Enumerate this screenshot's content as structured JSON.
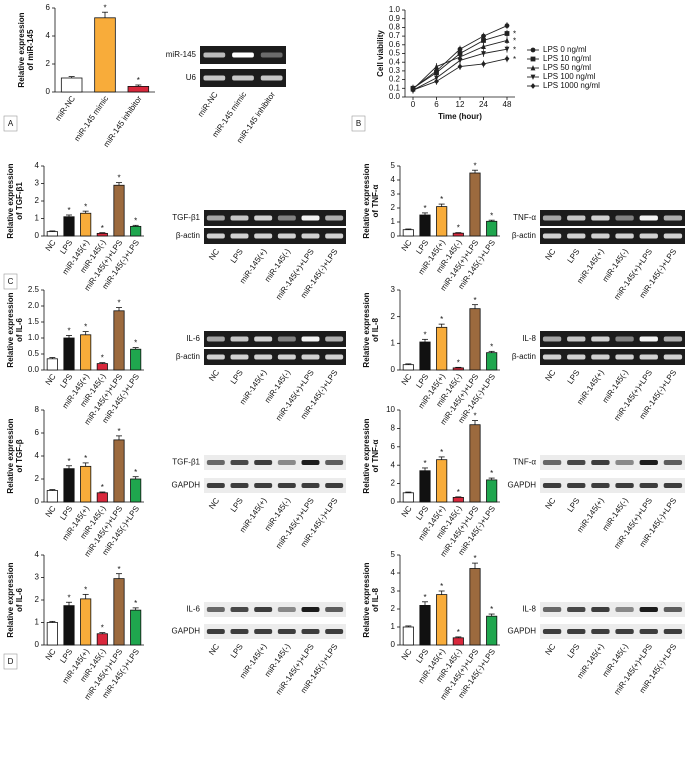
{
  "panel_labels": [
    "A",
    "B",
    "C",
    "D"
  ],
  "chart_data": [
    {
      "type": "bar",
      "ylabel": [
        "Relative expression",
        "of miR-145"
      ],
      "categories": [
        "miR-NC",
        "miR-145 mimic",
        "miR-145 inhibitor"
      ],
      "values": [
        1,
        5.3,
        0.4
      ],
      "errors": [
        0.1,
        0.4,
        0.1
      ],
      "significance": [
        null,
        "*",
        "*"
      ],
      "colors": [
        "#ffffff",
        "#f8ac3a",
        "#d8283c"
      ],
      "ylim": [
        0,
        6
      ],
      "yticks": [
        0,
        2,
        4,
        6
      ]
    },
    {
      "type": "line",
      "ylabel": [
        "Cell viability"
      ],
      "xlabel": "Time (hour)",
      "categories": [
        "0",
        "6",
        "12",
        "24",
        "48"
      ],
      "ylim": [
        0,
        1
      ],
      "yticks": [
        {
          "value": 0,
          "label": "0.0"
        },
        {
          "value": 0.1,
          "label": "0.1"
        },
        {
          "value": 0.2,
          "label": "0.2"
        },
        {
          "value": 0.3,
          "label": "0.3"
        },
        {
          "value": 0.4,
          "label": "0.4"
        },
        {
          "value": 0.5,
          "label": "0.5"
        },
        {
          "value": 0.6,
          "label": "0.6"
        },
        {
          "value": 0.7,
          "label": "0.7"
        },
        {
          "value": 0.8,
          "label": "0.8"
        },
        {
          "value": 0.9,
          "label": "0.9"
        },
        {
          "value": 1,
          "label": "1.0"
        }
      ],
      "series": [
        {
          "name": "LPS 0 ng/ml",
          "color": "#222222",
          "marker": "circle",
          "values": [
            0.1,
            0.3,
            0.55,
            0.7,
            0.82
          ],
          "significance": null
        },
        {
          "name": "LPS 10 ng/ml",
          "color": "#222222",
          "marker": "square",
          "values": [
            0.1,
            0.28,
            0.5,
            0.65,
            0.73
          ],
          "significance": "*"
        },
        {
          "name": "LPS 50 ng/ml",
          "color": "#222222",
          "marker": "triangle",
          "values": [
            0.09,
            0.35,
            0.46,
            0.58,
            0.65
          ],
          "significance": "*"
        },
        {
          "name": "LPS 100 ng/ml",
          "color": "#222222",
          "marker": "triangle-down",
          "values": [
            0.08,
            0.22,
            0.42,
            0.5,
            0.55
          ],
          "significance": "*"
        },
        {
          "name": "LPS 1000 ng/ml",
          "color": "#222222",
          "marker": "diamond",
          "values": [
            0.08,
            0.18,
            0.35,
            0.38,
            0.44
          ],
          "significance": "*"
        }
      ]
    },
    {
      "type": "bar",
      "ylabel": [
        "Relative expression",
        "of TGF-β1"
      ],
      "categories": [
        "NC",
        "LPS",
        "miR-145(+)",
        "miR-145(-)",
        "miR-145(+)+LPS",
        "miR-145(-)+LPS"
      ],
      "values": [
        0.25,
        1.1,
        1.3,
        0.15,
        2.9,
        0.55
      ],
      "errors": [
        0.04,
        0.1,
        0.12,
        0.04,
        0.15,
        0.06
      ],
      "significance": [
        null,
        "*",
        "*",
        "*",
        "*",
        "*"
      ],
      "colors": [
        "#ffffff",
        "#111111",
        "#f8ac3a",
        "#d8283c",
        "#9c6a3e",
        "#1fa64e"
      ],
      "ylim": [
        0,
        4
      ],
      "yticks": [
        0,
        1,
        2,
        3,
        4
      ]
    },
    {
      "type": "bar",
      "ylabel": [
        "Relative expression",
        "of TNF-α"
      ],
      "categories": [
        "NC",
        "LPS",
        "miR-145(+)",
        "miR-145(-)",
        "miR-145(+)+LPS",
        "miR-145(-)+LPS"
      ],
      "values": [
        0.45,
        1.5,
        2.1,
        0.2,
        4.5,
        1.05
      ],
      "errors": [
        0.05,
        0.15,
        0.18,
        0.04,
        0.2,
        0.08
      ],
      "significance": [
        null,
        "*",
        "*",
        "*",
        "*",
        "*"
      ],
      "colors": [
        "#ffffff",
        "#111111",
        "#f8ac3a",
        "#d8283c",
        "#9c6a3e",
        "#1fa64e"
      ],
      "ylim": [
        0,
        5
      ],
      "yticks": [
        0,
        1,
        2,
        3,
        4,
        5
      ]
    },
    {
      "type": "bar",
      "ylabel": [
        "Relative expression",
        "of IL-6"
      ],
      "categories": [
        "NC",
        "LPS",
        "miR-145(+)",
        "miR-145(-)",
        "miR-145(+)+LPS",
        "miR-145(-)+LPS"
      ],
      "values": [
        0.35,
        1.0,
        1.1,
        0.2,
        1.85,
        0.65
      ],
      "errors": [
        0.04,
        0.08,
        0.1,
        0.03,
        0.1,
        0.05
      ],
      "significance": [
        null,
        "*",
        "*",
        "*",
        "*",
        "*"
      ],
      "colors": [
        "#ffffff",
        "#111111",
        "#f8ac3a",
        "#d8283c",
        "#9c6a3e",
        "#1fa64e"
      ],
      "ylim": [
        0,
        2.5
      ],
      "yticks": [
        {
          "value": 0,
          "label": "0.0"
        },
        {
          "value": 0.5,
          "label": "0.5"
        },
        {
          "value": 1,
          "label": "1.0"
        },
        {
          "value": 1.5,
          "label": "1.5"
        },
        {
          "value": 2,
          "label": "2.0"
        },
        {
          "value": 2.5,
          "label": "2.5"
        }
      ]
    },
    {
      "type": "bar",
      "ylabel": [
        "Relative expression",
        "of IL-8"
      ],
      "categories": [
        "NC",
        "LPS",
        "miR-145(+)",
        "miR-145(-)",
        "miR-145(+)+LPS",
        "miR-145(-)+LPS"
      ],
      "values": [
        0.2,
        1.05,
        1.6,
        0.08,
        2.3,
        0.65
      ],
      "errors": [
        0.03,
        0.1,
        0.12,
        0.02,
        0.15,
        0.05
      ],
      "significance": [
        null,
        "*",
        "*",
        "*",
        "*",
        "*"
      ],
      "colors": [
        "#ffffff",
        "#111111",
        "#f8ac3a",
        "#d8283c",
        "#9c6a3e",
        "#1fa64e"
      ],
      "ylim": [
        0,
        3
      ],
      "yticks": [
        0,
        1,
        2,
        3
      ]
    },
    {
      "type": "bar",
      "ylabel": [
        "Relative expression",
        "of TGF-β"
      ],
      "categories": [
        "NC",
        "LPS",
        "miR-145(+)",
        "miR-145(-)",
        "miR-145(+)+LPS",
        "miR-145(-)+LPS"
      ],
      "values": [
        1,
        2.9,
        3.1,
        0.8,
        5.4,
        2.0
      ],
      "errors": [
        0.08,
        0.25,
        0.3,
        0.07,
        0.35,
        0.2
      ],
      "significance": [
        null,
        "*",
        "*",
        "*",
        "*",
        "*"
      ],
      "colors": [
        "#ffffff",
        "#111111",
        "#f8ac3a",
        "#d8283c",
        "#9c6a3e",
        "#1fa64e"
      ],
      "ylim": [
        0,
        8
      ],
      "yticks": [
        0,
        2,
        4,
        6,
        8
      ]
    },
    {
      "type": "bar",
      "ylabel": [
        "Relative expression",
        "of TNF-α"
      ],
      "categories": [
        "NC",
        "LPS",
        "miR-145(+)",
        "miR-145(-)",
        "miR-145(+)+LPS",
        "miR-145(-)+LPS"
      ],
      "values": [
        1,
        3.4,
        4.6,
        0.5,
        8.4,
        2.4
      ],
      "errors": [
        0.08,
        0.3,
        0.3,
        0.06,
        0.45,
        0.2
      ],
      "significance": [
        null,
        "*",
        "*",
        "*",
        "*",
        "*"
      ],
      "colors": [
        "#ffffff",
        "#111111",
        "#f8ac3a",
        "#d8283c",
        "#9c6a3e",
        "#1fa64e"
      ],
      "ylim": [
        0,
        10
      ],
      "yticks": [
        0,
        2,
        4,
        6,
        8,
        10
      ]
    },
    {
      "type": "bar",
      "ylabel": [
        "Relative expression",
        "of IL-6"
      ],
      "categories": [
        "NC",
        "LPS",
        "miR-145(+)",
        "miR-145(-)",
        "miR-145(+)+LPS",
        "miR-145(-)+LPS"
      ],
      "values": [
        1,
        1.75,
        2.05,
        0.5,
        2.95,
        1.55
      ],
      "errors": [
        0.05,
        0.15,
        0.2,
        0.05,
        0.22,
        0.1
      ],
      "significance": [
        null,
        "*",
        "*",
        "*",
        "*",
        "*"
      ],
      "colors": [
        "#ffffff",
        "#111111",
        "#f8ac3a",
        "#d8283c",
        "#9c6a3e",
        "#1fa64e"
      ],
      "ylim": [
        0,
        4
      ],
      "yticks": [
        0,
        1,
        2,
        3,
        4
      ]
    },
    {
      "type": "bar",
      "ylabel": [
        "Relative expression",
        "of IL-8"
      ],
      "categories": [
        "NC",
        "LPS",
        "miR-145(+)",
        "miR-145(-)",
        "miR-145(+)+LPS",
        "miR-145(-)+LPS"
      ],
      "values": [
        1,
        2.2,
        2.8,
        0.4,
        4.25,
        1.6
      ],
      "errors": [
        0.06,
        0.2,
        0.2,
        0.05,
        0.3,
        0.12
      ],
      "significance": [
        null,
        "*",
        "*",
        "*",
        "*",
        "*"
      ],
      "colors": [
        "#ffffff",
        "#111111",
        "#f8ac3a",
        "#d8283c",
        "#9c6a3e",
        "#1fa64e"
      ],
      "ylim": [
        0,
        5
      ],
      "yticks": [
        0,
        1,
        2,
        3,
        4,
        5
      ]
    }
  ],
  "gels": [
    {
      "rows": [
        "miR-145",
        "U6"
      ],
      "lanes": [
        "miR-NC",
        "miR-145 mimic",
        "miR-145 inhibitor"
      ]
    },
    {
      "rows": [
        "TGF-β1",
        "β-actin"
      ],
      "lanes": [
        "NC",
        "LPS",
        "miR-145(+)",
        "miR-145(-)",
        "miR-145(+)+LPS",
        "miR-145(-)+LPS"
      ]
    },
    {
      "rows": [
        "TNF-α",
        "β-actin"
      ],
      "lanes": [
        "NC",
        "LPS",
        "miR-145(+)",
        "miR-145(-)",
        "miR-145(+)+LPS",
        "miR-145(-)+LPS"
      ]
    },
    {
      "rows": [
        "IL-6",
        "β-actin"
      ],
      "lanes": [
        "NC",
        "LPS",
        "miR-145(+)",
        "miR-145(-)",
        "miR-145(+)+LPS",
        "miR-145(-)+LPS"
      ]
    },
    {
      "rows": [
        "IL-8",
        "β-actin"
      ],
      "lanes": [
        "NC",
        "LPS",
        "miR-145(+)",
        "miR-145(-)",
        "miR-145(+)+LPS",
        "miR-145(-)+LPS"
      ]
    },
    {
      "rows": [
        "TGF-β1",
        "GAPDH"
      ],
      "lanes": [
        "NC",
        "LPS",
        "miR-145(+)",
        "miR-145(-)",
        "miR-145(+)+LPS",
        "miR-145(-)+LPS"
      ]
    },
    {
      "rows": [
        "TNF-α",
        "GAPDH"
      ],
      "lanes": [
        "NC",
        "LPS",
        "miR-145(+)",
        "miR-145(-)",
        "miR-145(+)+LPS",
        "miR-145(-)+LPS"
      ]
    },
    {
      "rows": [
        "IL-6",
        "GAPDH"
      ],
      "lanes": [
        "NC",
        "LPS",
        "miR-145(+)",
        "miR-145(-)",
        "miR-145(+)+LPS",
        "miR-145(-)+LPS"
      ]
    },
    {
      "rows": [
        "IL-8",
        "GAPDH"
      ],
      "lanes": [
        "NC",
        "LPS",
        "miR-145(+)",
        "miR-145(-)",
        "miR-145(+)+LPS",
        "miR-145(-)+LPS"
      ]
    }
  ]
}
